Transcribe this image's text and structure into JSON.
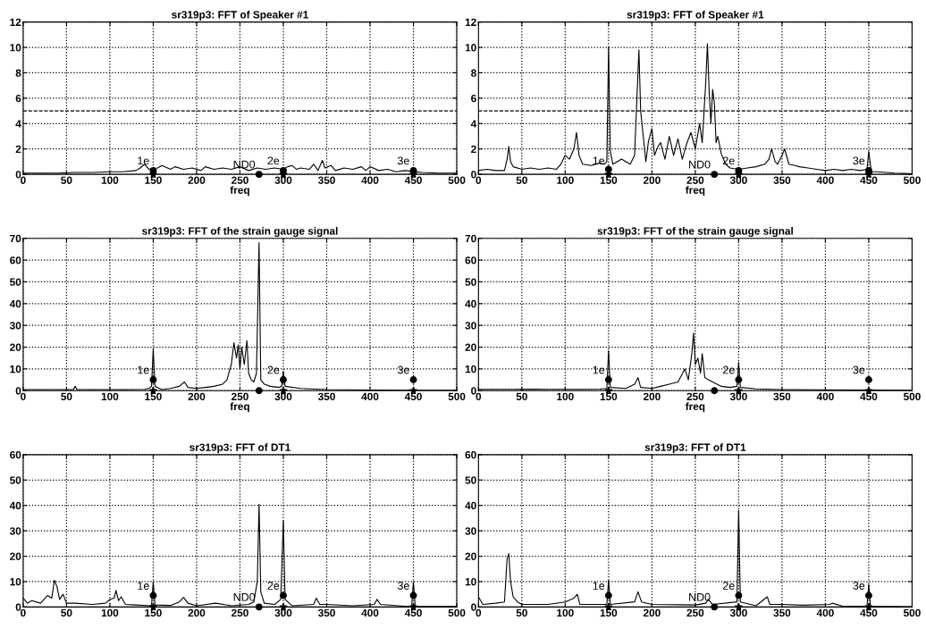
{
  "chart_data": [
    {
      "type": "line",
      "title": "sr319p3: FFT of Speaker #1",
      "xlabel": "freq",
      "xlim": [
        0,
        500
      ],
      "xticks": [
        0,
        50,
        100,
        150,
        200,
        250,
        300,
        350,
        400,
        450,
        500
      ],
      "ylim": [
        0,
        12
      ],
      "yticks": [
        0,
        2,
        4,
        6,
        8,
        10,
        12
      ],
      "grid": true,
      "ref_lines": [
        {
          "axis": "y",
          "value": 5,
          "line_style": "dashed"
        }
      ],
      "annotations": [
        {
          "text": "1e",
          "x": 150,
          "y": 0.3
        },
        {
          "text": "ND0",
          "x": 272,
          "y": 0
        },
        {
          "text": "2e",
          "x": 300,
          "y": 0.3
        },
        {
          "text": "3e",
          "x": 450,
          "y": 0.3
        }
      ],
      "series": [
        {
          "color": "#000000",
          "x": [
            0,
            20,
            40,
            60,
            80,
            100,
            115,
            130,
            135,
            140,
            145,
            155,
            160,
            170,
            175,
            185,
            195,
            205,
            210,
            220,
            230,
            240,
            250,
            260,
            270,
            280,
            290,
            300,
            305,
            310,
            315,
            320,
            330,
            335,
            340,
            345,
            348,
            355,
            360,
            370,
            380,
            390,
            395,
            400,
            410,
            420,
            430,
            440,
            460,
            480,
            500
          ],
          "values": [
            0.1,
            0.1,
            0.1,
            0.15,
            0.15,
            0.2,
            0.2,
            0.3,
            0.5,
            0.8,
            0.4,
            0.5,
            0.7,
            0.4,
            0.6,
            0.4,
            0.5,
            0.3,
            0.6,
            0.4,
            0.5,
            0.4,
            0.6,
            0.3,
            0.5,
            0.4,
            0.5,
            0.4,
            0.6,
            0.7,
            0.4,
            0.5,
            0.4,
            0.8,
            0.3,
            1.1,
            0.5,
            0.7,
            0.3,
            0.5,
            0.4,
            0.6,
            0.3,
            0.6,
            0.3,
            0.4,
            0.2,
            0.3,
            0.15,
            0.1,
            0.1
          ]
        },
        {
          "type": "scatter",
          "marker": "star",
          "color": "#000000",
          "x": [
            150,
            300,
            450
          ],
          "values": [
            0,
            0,
            0
          ]
        },
        {
          "type": "scatter",
          "marker": "circle",
          "color": "#000000",
          "x": [
            272
          ],
          "values": [
            0
          ]
        },
        {
          "type": "scatter",
          "marker": "circle",
          "color": "#000000",
          "x": [
            150,
            300,
            450
          ],
          "values": [
            0.3,
            0.3,
            0.3
          ]
        }
      ]
    },
    {
      "type": "line",
      "title": "sr319p3: FFT of Speaker #1",
      "xlabel": "freq",
      "xlim": [
        0,
        500
      ],
      "xticks": [
        0,
        50,
        100,
        150,
        200,
        250,
        300,
        350,
        400,
        450,
        500
      ],
      "ylim": [
        0,
        12
      ],
      "yticks": [
        0,
        2,
        4,
        6,
        8,
        10,
        12
      ],
      "grid": true,
      "ref_lines": [
        {
          "axis": "y",
          "value": 5,
          "line_style": "dashed"
        }
      ],
      "annotations": [
        {
          "text": "1e",
          "x": 150,
          "y": 0.3
        },
        {
          "text": "ND0",
          "x": 272,
          "y": 0
        },
        {
          "text": "2e",
          "x": 300,
          "y": 0.3
        },
        {
          "text": "3e",
          "x": 450,
          "y": 0.3
        }
      ],
      "series": [
        {
          "color": "#000000",
          "x": [
            0,
            10,
            20,
            30,
            33,
            35,
            37,
            40,
            50,
            60,
            70,
            80,
            90,
            95,
            100,
            105,
            110,
            113,
            116,
            120,
            130,
            140,
            145,
            148,
            150,
            152,
            155,
            160,
            165,
            170,
            175,
            180,
            183,
            185,
            187,
            190,
            193,
            196,
            200,
            203,
            207,
            210,
            215,
            220,
            225,
            230,
            235,
            240,
            245,
            250,
            255,
            258,
            262,
            264,
            266,
            268,
            270,
            272,
            274,
            276,
            280,
            285,
            290,
            300,
            310,
            320,
            330,
            335,
            338,
            342,
            345,
            350,
            353,
            358,
            365,
            370,
            380,
            390,
            400,
            410,
            420,
            430,
            440,
            448,
            450,
            453,
            460,
            480,
            500
          ],
          "values": [
            0.3,
            0.4,
            0.3,
            0.3,
            1.2,
            2.2,
            1.0,
            0.6,
            0.4,
            0.5,
            0.4,
            0.5,
            0.4,
            0.8,
            1.5,
            1.2,
            2.0,
            3.3,
            1.5,
            0.8,
            0.7,
            0.9,
            0.8,
            1.0,
            10,
            1.8,
            0.8,
            1.0,
            1.2,
            1.0,
            0.8,
            1.5,
            6.5,
            9.8,
            5.0,
            3.0,
            1.0,
            2.6,
            3.6,
            1.5,
            2.2,
            2.5,
            1.2,
            3.0,
            1.5,
            2.8,
            1.2,
            2.4,
            3.3,
            2.0,
            4.0,
            2.5,
            7.2,
            10.3,
            6.5,
            4.0,
            6.7,
            5.6,
            2.5,
            3.0,
            1.6,
            0.8,
            0.5,
            0.4,
            0.5,
            0.6,
            0.8,
            1.2,
            2.0,
            1.0,
            0.8,
            1.5,
            2.0,
            0.8,
            0.7,
            0.6,
            0.5,
            0.4,
            0.3,
            0.4,
            0.3,
            0.4,
            0.3,
            0.4,
            1.8,
            0.2,
            0.2,
            0.1,
            0.05
          ]
        },
        {
          "type": "scatter",
          "marker": "star",
          "color": "#000000",
          "x": [
            150,
            300,
            450
          ],
          "values": [
            0,
            0,
            0
          ]
        },
        {
          "type": "scatter",
          "marker": "circle",
          "color": "#000000",
          "x": [
            272
          ],
          "values": [
            0
          ]
        },
        {
          "type": "scatter",
          "marker": "circle",
          "color": "#000000",
          "x": [
            150,
            300,
            450
          ],
          "values": [
            0.4,
            0.3,
            0.3
          ]
        }
      ]
    },
    {
      "type": "line",
      "title": "sr319p3: FFT of the strain gauge signal",
      "xlabel": "freq",
      "xlim": [
        0,
        500
      ],
      "xticks": [
        0,
        50,
        100,
        150,
        200,
        250,
        300,
        350,
        400,
        450,
        500
      ],
      "ylim": [
        0,
        70
      ],
      "yticks": [
        0,
        10,
        20,
        30,
        40,
        50,
        60,
        70
      ],
      "grid": true,
      "annotations": [
        {
          "text": "1e",
          "x": 150,
          "y": 5
        },
        {
          "text": "2e",
          "x": 300,
          "y": 5
        },
        {
          "text": "3e",
          "x": 450,
          "y": 5
        }
      ],
      "series": [
        {
          "color": "#000000",
          "x": [
            0,
            20,
            40,
            58,
            60,
            62,
            80,
            100,
            120,
            140,
            145,
            148,
            150,
            152,
            160,
            170,
            180,
            186,
            190,
            200,
            210,
            220,
            230,
            235,
            240,
            243,
            246,
            248,
            250,
            252,
            255,
            258,
            260,
            263,
            266,
            269,
            272,
            274,
            278,
            285,
            295,
            298,
            300,
            302,
            320,
            350,
            400,
            450,
            500
          ],
          "values": [
            0.5,
            0.5,
            0.5,
            0.5,
            2,
            0.5,
            0.5,
            0.5,
            0.5,
            0.6,
            1,
            2,
            19,
            2,
            0.5,
            1,
            2,
            4,
            1.5,
            1,
            1.5,
            2,
            3,
            5,
            12,
            22,
            15,
            21,
            10,
            20,
            12,
            23,
            8,
            5,
            4,
            8,
            68,
            5,
            3,
            2,
            1.5,
            2,
            9,
            2,
            1,
            0.5,
            0.3,
            0.2,
            0.2
          ]
        },
        {
          "type": "scatter",
          "marker": "star",
          "color": "#000000",
          "x": [
            150,
            300,
            450
          ],
          "values": [
            0,
            0,
            0
          ]
        },
        {
          "type": "scatter",
          "marker": "circle",
          "color": "#000000",
          "x": [
            272
          ],
          "values": [
            0
          ]
        },
        {
          "type": "scatter",
          "marker": "circle",
          "color": "#000000",
          "x": [
            150,
            300,
            450
          ],
          "values": [
            5,
            5,
            5
          ]
        }
      ]
    },
    {
      "type": "line",
      "title": "sr319p3: FFT of the strain gauge signal",
      "xlabel": "freq",
      "xlim": [
        0,
        500
      ],
      "xticks": [
        0,
        50,
        100,
        150,
        200,
        250,
        300,
        350,
        400,
        450,
        500
      ],
      "ylim": [
        0,
        70
      ],
      "yticks": [
        0,
        10,
        20,
        30,
        40,
        50,
        60,
        70
      ],
      "grid": true,
      "annotations": [
        {
          "text": "1e",
          "x": 150,
          "y": 5
        },
        {
          "text": "2e",
          "x": 300,
          "y": 5
        },
        {
          "text": "3e",
          "x": 450,
          "y": 5
        }
      ],
      "series": [
        {
          "color": "#000000",
          "x": [
            0,
            20,
            40,
            60,
            80,
            100,
            120,
            140,
            148,
            150,
            152,
            170,
            180,
            184,
            187,
            200,
            210,
            220,
            230,
            238,
            242,
            246,
            248,
            250,
            253,
            256,
            258,
            261,
            265,
            270,
            280,
            290,
            298,
            300,
            302,
            320,
            350,
            400,
            450,
            500
          ],
          "values": [
            0.6,
            0.6,
            0.6,
            0.7,
            0.6,
            0.6,
            0.6,
            0.7,
            1,
            18.5,
            1.5,
            1,
            3,
            6,
            1.5,
            1,
            2,
            3,
            4,
            10,
            5,
            17,
            26.5,
            12,
            15,
            8,
            17,
            6,
            5,
            4,
            2,
            1.5,
            2,
            13,
            1.5,
            0.8,
            0.5,
            0.4,
            0.3,
            0.2
          ]
        },
        {
          "type": "scatter",
          "marker": "star",
          "color": "#000000",
          "x": [
            150,
            300,
            450
          ],
          "values": [
            0,
            0,
            0
          ]
        },
        {
          "type": "scatter",
          "marker": "circle",
          "color": "#000000",
          "x": [
            272
          ],
          "values": [
            0
          ]
        },
        {
          "type": "scatter",
          "marker": "circle",
          "color": "#000000",
          "x": [
            150,
            300,
            450
          ],
          "values": [
            5,
            5,
            5
          ]
        }
      ]
    },
    {
      "type": "line",
      "title": "sr319p3: FFT of DT1",
      "xlim": [
        0,
        500
      ],
      "xticks": [
        0,
        50,
        100,
        150,
        200,
        250,
        300,
        350,
        400,
        450,
        500
      ],
      "ylim": [
        0,
        60
      ],
      "yticks": [
        0,
        10,
        20,
        30,
        40,
        50,
        60
      ],
      "grid": true,
      "annotations": [
        {
          "text": "1e",
          "x": 150,
          "y": 4.5
        },
        {
          "text": "ND0",
          "x": 272,
          "y": 0
        },
        {
          "text": "2e",
          "x": 300,
          "y": 4.5
        },
        {
          "text": "3e",
          "x": 450,
          "y": 4.5
        }
      ],
      "series": [
        {
          "color": "#000000",
          "x": [
            0,
            5,
            10,
            20,
            28,
            33,
            36,
            39,
            42,
            46,
            50,
            60,
            80,
            95,
            100,
            105,
            107,
            110,
            113,
            118,
            130,
            148,
            150,
            152,
            170,
            180,
            185,
            190,
            200,
            222,
            240,
            260,
            266,
            270,
            272,
            274,
            278,
            290,
            297,
            300,
            302,
            310,
            335,
            338,
            342,
            350,
            380,
            405,
            408,
            412,
            440,
            448,
            450,
            452,
            500
          ],
          "values": [
            3.5,
            1.5,
            2.5,
            1.5,
            4.5,
            3.5,
            10.5,
            8,
            3,
            5,
            1.5,
            1.5,
            1,
            1.5,
            3,
            3.5,
            6.5,
            2.5,
            4,
            1,
            0.8,
            0.5,
            10,
            0.8,
            0.6,
            2,
            3.8,
            1.5,
            0.5,
            1.5,
            0.5,
            1,
            2,
            10,
            40.5,
            6,
            1.5,
            1,
            3,
            34,
            3,
            0.5,
            1,
            3.5,
            1,
            1,
            0.5,
            1,
            3,
            1,
            0.3,
            0.3,
            10,
            0.3,
            0.2
          ]
        },
        {
          "type": "scatter",
          "marker": "star",
          "color": "#000000",
          "x": [
            150,
            300,
            450
          ],
          "values": [
            0,
            0,
            0
          ]
        },
        {
          "type": "scatter",
          "marker": "circle",
          "color": "#000000",
          "x": [
            272
          ],
          "values": [
            0
          ]
        },
        {
          "type": "scatter",
          "marker": "circle",
          "color": "#000000",
          "x": [
            150,
            300,
            450
          ],
          "values": [
            4.5,
            4.5,
            4.5
          ]
        }
      ]
    },
    {
      "type": "line",
      "title": "sr319p3: FFT of DT1",
      "xlim": [
        0,
        500
      ],
      "xticks": [
        0,
        50,
        100,
        150,
        200,
        250,
        300,
        350,
        400,
        450,
        500
      ],
      "ylim": [
        0,
        60
      ],
      "yticks": [
        0,
        10,
        20,
        30,
        40,
        50,
        60
      ],
      "grid": true,
      "annotations": [
        {
          "text": "1e",
          "x": 150,
          "y": 4.5
        },
        {
          "text": "ND0",
          "x": 272,
          "y": 0
        },
        {
          "text": "2e",
          "x": 300,
          "y": 4.5
        },
        {
          "text": "3e",
          "x": 450,
          "y": 4.5
        }
      ],
      "series": [
        {
          "color": "#000000",
          "x": [
            0,
            5,
            20,
            30,
            33,
            35,
            37,
            40,
            45,
            50,
            80,
            100,
            110,
            114,
            117,
            148,
            150,
            152,
            180,
            184,
            188,
            200,
            250,
            262,
            265,
            270,
            298,
            300,
            302,
            320,
            333,
            336,
            350,
            375,
            405,
            408,
            420,
            448,
            450,
            452,
            500
          ],
          "values": [
            4,
            1,
            1.5,
            2,
            19,
            21,
            10,
            4,
            2,
            1,
            1,
            2,
            3.5,
            5,
            1,
            1,
            10.5,
            1,
            2,
            6,
            2,
            1,
            0.8,
            1.5,
            3,
            1,
            2,
            38,
            2,
            0.5,
            4,
            1,
            1,
            0.7,
            1,
            1.5,
            0.3,
            0.3,
            9,
            0.3,
            0.1
          ]
        },
        {
          "type": "scatter",
          "marker": "star",
          "color": "#000000",
          "x": [
            150,
            300,
            450
          ],
          "values": [
            0,
            0,
            0
          ]
        },
        {
          "type": "scatter",
          "marker": "circle",
          "color": "#000000",
          "x": [
            272
          ],
          "values": [
            0
          ]
        },
        {
          "type": "scatter",
          "marker": "circle",
          "color": "#000000",
          "x": [
            150,
            300,
            450
          ],
          "values": [
            4.5,
            4.5,
            4.5
          ]
        }
      ]
    }
  ]
}
